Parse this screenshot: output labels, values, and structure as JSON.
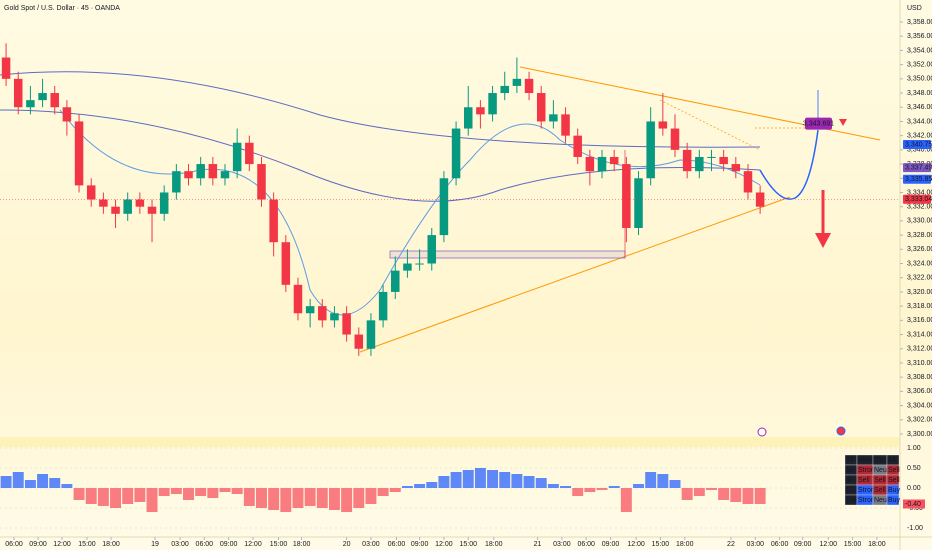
{
  "chart_data": {
    "type": "candlestick",
    "title": "Gold Spot / U.S. Dollar · 45 · OANDA",
    "currency": "USD",
    "up_color": "#089981",
    "down_color": "#f23645",
    "open": [
      3353,
      3350,
      3346,
      3347,
      3348,
      3346,
      3344,
      3335,
      3333,
      3332,
      3331,
      3333,
      3332,
      3331,
      3334,
      3337,
      3336,
      3338,
      3336,
      3337,
      3341,
      3338,
      3333,
      3327,
      3321,
      3317,
      3318,
      3316,
      3317,
      3314,
      3312,
      3316,
      3320,
      3323,
      3324,
      3324,
      3328,
      3336,
      3343,
      3346,
      3345,
      3348,
      3349,
      3350,
      3348,
      3344,
      3345,
      3342,
      3339,
      3337,
      3339,
      3338,
      3329,
      3336,
      3344,
      3343,
      3340,
      3337,
      3339,
      3339,
      3338,
      3337,
      3334
    ],
    "high": [
      3355,
      3351,
      3349,
      3350,
      3349,
      3347,
      3345,
      3336,
      3334,
      3333,
      3334,
      3334,
      3333,
      3335,
      3338,
      3338,
      3339,
      3339,
      3338,
      3343,
      3342,
      3339,
      3334,
      3328,
      3322,
      3319,
      3319,
      3318,
      3318,
      3315,
      3317,
      3321,
      3325,
      3326,
      3326,
      3329,
      3337,
      3344,
      3349,
      3347,
      3349,
      3351,
      3353,
      3351,
      3349,
      3347,
      3346,
      3343,
      3340,
      3340,
      3340,
      3339,
      3337,
      3346,
      3348,
      3345,
      3341,
      3340,
      3340,
      3340,
      3339,
      3338,
      3335
    ],
    "low": [
      3349,
      3345,
      3345,
      3346,
      3345,
      3342,
      3334,
      3332,
      3331,
      3329,
      3330,
      3331,
      3327,
      3330,
      3333,
      3335,
      3335,
      3335,
      3335,
      3336,
      3337,
      3332,
      3325,
      3320,
      3316,
      3315,
      3315,
      3315,
      3313,
      3311,
      3311,
      3315,
      3319,
      3322,
      3323,
      3323,
      3327,
      3335,
      3342,
      3343,
      3344,
      3347,
      3348,
      3347,
      3343,
      3343,
      3341,
      3338,
      3335,
      3336,
      3337,
      3327,
      3328,
      3335,
      3342,
      3339,
      3336,
      3336,
      3337,
      3337,
      3336,
      3333,
      3331
    ],
    "close": [
      3350,
      3346,
      3347,
      3348,
      3346,
      3344,
      3335,
      3333,
      3332,
      3331,
      3333,
      3332,
      3331,
      3334,
      3337,
      3336,
      3338,
      3336,
      3337,
      3341,
      3338,
      3333,
      3327,
      3321,
      3317,
      3318,
      3316,
      3317,
      3314,
      3312,
      3316,
      3320,
      3323,
      3324,
      3324,
      3328,
      3336,
      3343,
      3346,
      3345,
      3348,
      3349,
      3350,
      3348,
      3344,
      3345,
      3342,
      3339,
      3337,
      3339,
      3338,
      3329,
      3336,
      3344,
      3343,
      3340,
      3337,
      3339,
      3339,
      3338,
      3337,
      3334,
      3332
    ],
    "xlim": [
      -0.5,
      73.5
    ],
    "xticks": [
      {
        "value": 0.65,
        "label": "06:00"
      },
      {
        "value": 2.63,
        "label": "09:00"
      },
      {
        "value": 4.6,
        "label": "12:00"
      },
      {
        "value": 6.65,
        "label": "15:00"
      },
      {
        "value": 8.63,
        "label": "18:00"
      },
      {
        "value": 12.25,
        "label": "19"
      },
      {
        "value": 14.3,
        "label": "03:00"
      },
      {
        "value": 16.3,
        "label": "06:00"
      },
      {
        "value": 18.3,
        "label": "09:00"
      },
      {
        "value": 20.3,
        "label": "12:00"
      },
      {
        "value": 22.4,
        "label": "15:00"
      },
      {
        "value": 24.3,
        "label": "18:00"
      },
      {
        "value": 28,
        "label": "20"
      },
      {
        "value": 30,
        "label": "03:00"
      },
      {
        "value": 32.1,
        "label": "06:00"
      },
      {
        "value": 34,
        "label": "09:00"
      },
      {
        "value": 36,
        "label": "12:00"
      },
      {
        "value": 38,
        "label": "15:00"
      },
      {
        "value": 40.1,
        "label": "18:00"
      },
      {
        "value": 43.7,
        "label": "21"
      },
      {
        "value": 45.7,
        "label": "03:00"
      },
      {
        "value": 47.7,
        "label": "06:00"
      },
      {
        "value": 49.7,
        "label": "09:00"
      },
      {
        "value": 51.8,
        "label": "12:00"
      },
      {
        "value": 53.8,
        "label": "15:00"
      },
      {
        "value": 55.8,
        "label": "18:00"
      },
      {
        "value": 59.6,
        "label": "22"
      },
      {
        "value": 61.6,
        "label": "03:00"
      },
      {
        "value": 63.6,
        "label": "06:00"
      },
      {
        "value": 65.5,
        "label": "09:00"
      },
      {
        "value": 67.6,
        "label": "12:00"
      },
      {
        "value": 69.6,
        "label": "15:00"
      },
      {
        "value": 71.6,
        "label": "18:00"
      }
    ],
    "ylim": [
      3300,
      3358
    ],
    "yticks": [
      {
        "value": 3300,
        "label": "3,300.000"
      },
      {
        "value": 3302,
        "label": "3,302.000"
      },
      {
        "value": 3304,
        "label": "3,304.000"
      },
      {
        "value": 3306,
        "label": "3,306.000"
      },
      {
        "value": 3308,
        "label": "3,308.000"
      },
      {
        "value": 3310,
        "label": "3,310.000"
      },
      {
        "value": 3312,
        "label": "3,312.000"
      },
      {
        "value": 3314,
        "label": "3,314.000"
      },
      {
        "value": 3316,
        "label": "3,316.000"
      },
      {
        "value": 3318,
        "label": "3,318.000"
      },
      {
        "value": 3320,
        "label": "3,320.000"
      },
      {
        "value": 3322,
        "label": "3,322.000"
      },
      {
        "value": 3324,
        "label": "3,324.000"
      },
      {
        "value": 3326,
        "label": "3,326.000"
      },
      {
        "value": 3328,
        "label": "3,328.000"
      },
      {
        "value": 3330,
        "label": "3,330.000"
      },
      {
        "value": 3332,
        "label": "3,332.000"
      },
      {
        "value": 3334,
        "label": "3,334.000"
      },
      {
        "value": 3336,
        "label": "3,336.000"
      },
      {
        "value": 3338,
        "label": "3,338.000"
      },
      {
        "value": 3340,
        "label": "3,340.000"
      },
      {
        "value": 3342,
        "label": "3,342.000"
      },
      {
        "value": 3344,
        "label": "3,344.000"
      },
      {
        "value": 3346,
        "label": "3,346.000"
      },
      {
        "value": 3348,
        "label": "3,348.000"
      },
      {
        "value": 3350,
        "label": "3,350.000"
      },
      {
        "value": 3352,
        "label": "3,352.000"
      },
      {
        "value": 3354,
        "label": "3,354.000"
      },
      {
        "value": 3356,
        "label": "3,356.000"
      },
      {
        "value": 3358,
        "label": "3,358.000"
      }
    ],
    "price_labels": [
      {
        "value": 3340.755,
        "label": "3,340.755",
        "color": "#2962ff"
      },
      {
        "value": 3337.493,
        "label": "3,337.493",
        "color": "#7e57c2"
      },
      {
        "value": 3335.859,
        "label": "3,335.859",
        "color": "#2962ff"
      },
      {
        "value": 3333.049,
        "label": "3,333.049",
        "color": "#f23645"
      }
    ],
    "target": {
      "value": 3343.691,
      "label": "3,343.691",
      "color": "#9c27b0"
    },
    "oscillator": {
      "values": [
        0.3,
        0.4,
        0.2,
        0.35,
        0.25,
        0.1,
        -0.3,
        -0.4,
        -0.45,
        -0.5,
        -0.4,
        -0.35,
        -0.6,
        -0.2,
        -0.15,
        -0.3,
        -0.2,
        -0.25,
        -0.1,
        -0.15,
        -0.45,
        -0.5,
        -0.55,
        -0.6,
        -0.5,
        -0.45,
        -0.5,
        -0.55,
        -0.6,
        -0.5,
        -0.4,
        -0.2,
        -0.1,
        0.05,
        0.1,
        0.15,
        0.3,
        0.4,
        0.45,
        0.5,
        0.45,
        0.4,
        0.35,
        0.3,
        0.25,
        0.1,
        0.05,
        -0.2,
        -0.1,
        -0.05,
        0.05,
        -0.6,
        0.1,
        0.4,
        0.35,
        0.2,
        -0.3,
        -0.2,
        -0.05,
        -0.3,
        -0.35,
        -0.4,
        -0.4
      ],
      "pos_color": "#2962ff",
      "neg_color": "#f7525f",
      "ylim": [
        -1,
        1
      ],
      "yticks": [
        {
          "value": 1,
          "label": "1.00"
        },
        {
          "value": 0.5,
          "label": "0.50"
        },
        {
          "value": 0,
          "label": "0.00"
        },
        {
          "value": -0.5,
          "label": "-0.50"
        },
        {
          "value": -1,
          "label": "-1.00"
        }
      ],
      "last": {
        "value": -0.4,
        "label": "-0.40"
      }
    },
    "table": {
      "header": [
        "TF",
        "MAs",
        "Osc",
        "All"
      ],
      "rows": [
        [
          "1H",
          "Strong Sell",
          "Neutral",
          "Sell"
        ],
        [
          "4H",
          "Sell",
          "Sell",
          "Sell"
        ],
        [
          "1D",
          "Strong Buy",
          "Sell",
          "Buy"
        ],
        [
          "1W",
          "Strong Buy",
          "Neutral",
          "Buy"
        ]
      ]
    }
  }
}
